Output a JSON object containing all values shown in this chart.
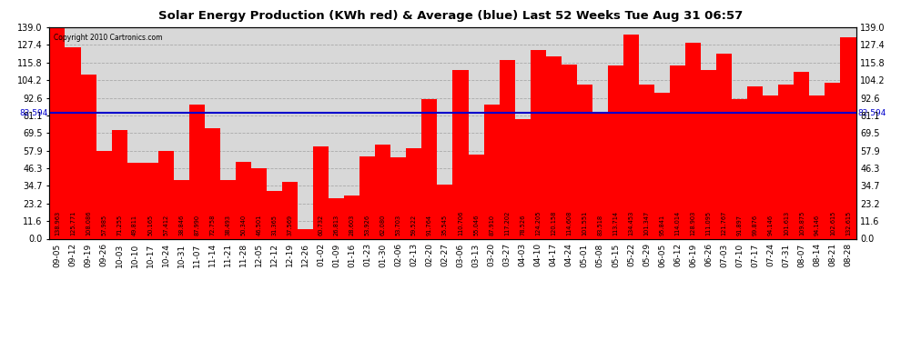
{
  "title": "Solar Energy Production (KWh red) & Average (blue) Last 52 Weeks Tue Aug 31 06:57",
  "copyright": "Copyright 2010 Cartronics.com",
  "average": 82.594,
  "bar_color": "#ff0000",
  "average_line_color": "#0000cc",
  "background_color": "#ffffff",
  "plot_bg_color": "#d8d8d8",
  "ylim": [
    0,
    139.0
  ],
  "yticks": [
    0.0,
    11.6,
    23.2,
    34.7,
    46.3,
    57.9,
    69.5,
    81.1,
    92.6,
    104.2,
    115.8,
    127.4,
    139.0
  ],
  "categories": [
    "09-05",
    "09-12",
    "09-19",
    "09-26",
    "10-03",
    "10-10",
    "10-17",
    "10-24",
    "10-31",
    "11-07",
    "11-14",
    "11-21",
    "11-28",
    "12-05",
    "12-12",
    "12-19",
    "12-26",
    "01-02",
    "01-09",
    "01-16",
    "01-23",
    "01-30",
    "02-06",
    "02-13",
    "02-20",
    "02-27",
    "03-06",
    "03-13",
    "03-20",
    "03-27",
    "04-03",
    "04-10",
    "04-17",
    "04-24",
    "05-01",
    "05-08",
    "05-15",
    "05-22",
    "05-29",
    "06-05",
    "06-12",
    "06-19",
    "06-26",
    "07-03",
    "07-10",
    "07-17",
    "07-24",
    "07-31",
    "08-07",
    "08-14",
    "08-21",
    "08-28"
  ],
  "values": [
    138.963,
    125.771,
    108.086,
    57.985,
    71.255,
    49.811,
    50.165,
    57.412,
    38.846,
    87.99,
    72.758,
    38.493,
    50.34,
    46.501,
    31.365,
    37.569,
    6.079,
    60.732,
    26.813,
    28.603,
    53.926,
    62.08,
    53.703,
    59.522,
    91.764,
    35.545,
    110.706,
    55.046,
    87.91,
    117.202,
    78.526,
    124.205,
    120.158,
    114.608,
    101.551,
    83.518,
    113.714,
    134.453,
    101.347,
    95.841,
    114.014,
    128.903,
    111.095,
    121.767,
    91.897,
    99.876,
    94.146,
    101.613,
    109.875,
    94.146,
    102.615,
    132.615
  ]
}
